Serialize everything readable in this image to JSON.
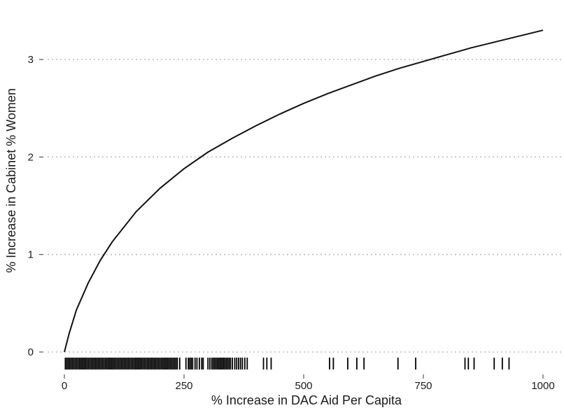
{
  "chart_data": {
    "type": "line",
    "title": "",
    "xlabel": "% Increase in DAC Aid Per Capita",
    "ylabel": "% Increase in Cabinet % Women",
    "xlim": [
      0,
      1000
    ],
    "ylim": [
      0,
      3.5
    ],
    "x_ticks": [
      0,
      250,
      500,
      750,
      1000
    ],
    "x_tick_labels": [
      "0",
      "250",
      "500",
      "750",
      "1000"
    ],
    "y_ticks": [
      0,
      1,
      2,
      3
    ],
    "y_tick_labels": [
      "0",
      "1",
      "2",
      "3"
    ],
    "grid": "horizontal-dotted",
    "curve": {
      "x": [
        0,
        10,
        25,
        50,
        75,
        100,
        150,
        200,
        250,
        300,
        350,
        400,
        450,
        500,
        550,
        600,
        650,
        700,
        750,
        800,
        850,
        900,
        950,
        1000
      ],
      "y": [
        0.0,
        0.19,
        0.43,
        0.71,
        0.94,
        1.13,
        1.44,
        1.68,
        1.88,
        2.05,
        2.19,
        2.32,
        2.44,
        2.55,
        2.65,
        2.74,
        2.83,
        2.91,
        2.98,
        3.05,
        3.12,
        3.18,
        3.24,
        3.3
      ]
    },
    "rug": {
      "x": [
        2,
        5,
        8,
        11,
        14,
        17,
        20,
        23,
        26,
        29,
        32,
        35,
        38,
        41,
        44,
        47,
        50,
        53,
        56,
        59,
        62,
        65,
        68,
        71,
        74,
        77,
        80,
        83,
        86,
        89,
        92,
        95,
        98,
        101,
        104,
        107,
        110,
        113,
        116,
        119,
        122,
        125,
        128,
        131,
        134,
        137,
        140,
        143,
        146,
        149,
        152,
        155,
        158,
        161,
        164,
        167,
        170,
        173,
        176,
        179,
        182,
        185,
        188,
        191,
        194,
        197,
        200,
        203,
        206,
        209,
        212,
        215,
        218,
        221,
        224,
        227,
        230,
        233,
        236,
        241,
        254,
        259,
        262,
        265,
        268,
        273,
        277,
        282,
        287,
        290,
        300,
        304,
        308,
        311,
        314,
        317,
        320,
        323,
        326,
        329,
        332,
        335,
        338,
        341,
        344,
        347,
        351,
        356,
        360,
        364,
        368,
        372,
        377,
        382,
        416,
        423,
        432,
        554,
        562,
        592,
        611,
        626,
        697,
        734,
        837,
        844,
        856,
        898,
        915,
        929
      ]
    }
  }
}
